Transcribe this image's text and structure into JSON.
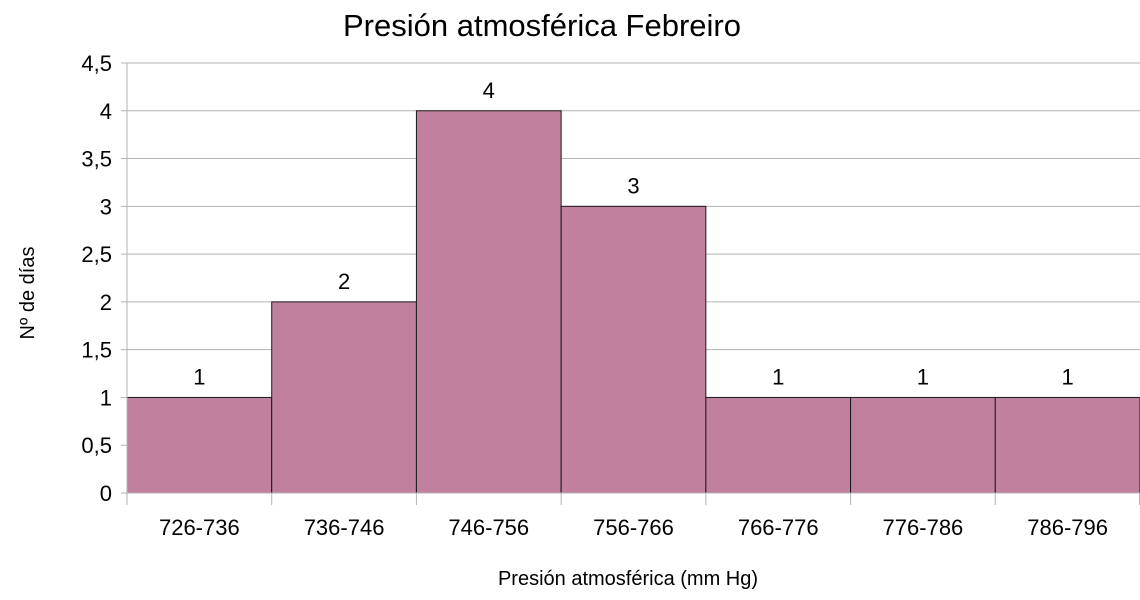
{
  "chart_data": {
    "type": "bar",
    "title": "Presión atmosférica Febreiro",
    "xlabel": "Presión atmosférica (mm Hg)",
    "ylabel": "Nº de días",
    "categories": [
      "726-736",
      "736-746",
      "746-756",
      "756-766",
      "766-776",
      "776-786",
      "786-796"
    ],
    "values": [
      1,
      2,
      4,
      3,
      1,
      1,
      1
    ],
    "data_labels": [
      "1",
      "2",
      "4",
      "3",
      "1",
      "1",
      "1"
    ],
    "ylim": [
      0,
      4.5
    ],
    "y_ticks": [
      0,
      0.5,
      1,
      1.5,
      2,
      2.5,
      3,
      3.5,
      4,
      4.5
    ],
    "y_tick_labels": [
      "0",
      "0,5",
      "1",
      "1,5",
      "2",
      "2,5",
      "3",
      "3,5",
      "4",
      "4,5"
    ],
    "grid": true,
    "legend": "none",
    "bar_color": "#c0809e",
    "bar_edge_color": "#1a1a1a",
    "grid_color": "#b3b3b3"
  }
}
